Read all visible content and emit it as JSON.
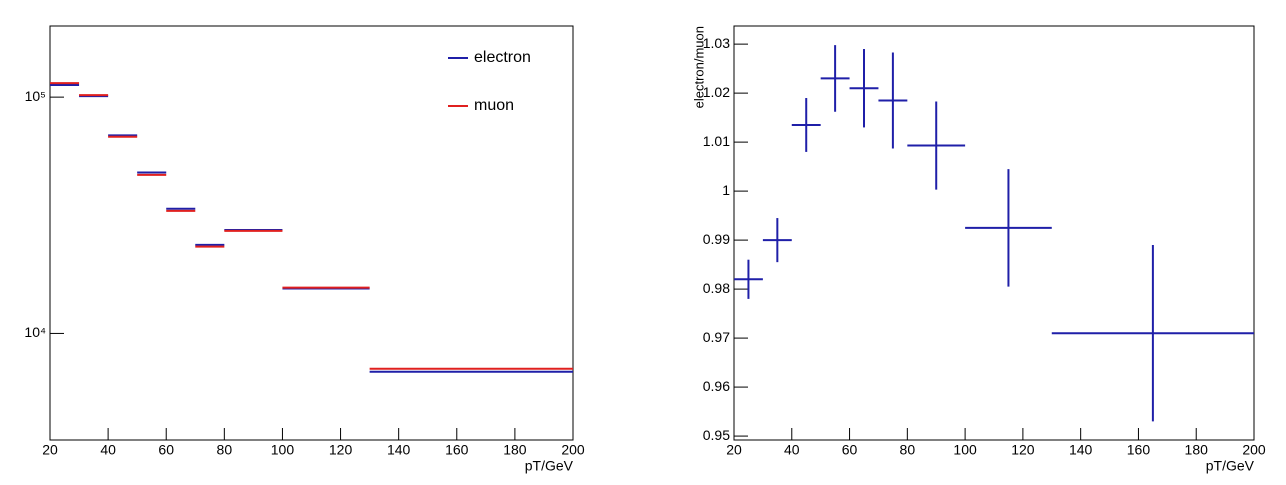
{
  "chart_data": [
    {
      "type": "histogram",
      "log_y": true,
      "legend": "upper right",
      "bins": [
        20,
        30,
        40,
        50,
        60,
        70,
        80,
        100,
        130,
        200
      ],
      "series": [
        {
          "name": "electron",
          "color": "#1f1fa8",
          "values": [
            112500,
            101000,
            68900,
            48000,
            33700,
            23700,
            27400,
            15500,
            6880
          ]
        },
        {
          "name": "muon",
          "color": "#e0201f",
          "values": [
            114600,
            102000,
            68000,
            46900,
            33000,
            23300,
            27150,
            15620,
            7090
          ]
        }
      ],
      "xlim": [
        20,
        200
      ],
      "xticks": [
        20,
        40,
        60,
        80,
        100,
        120,
        140,
        160,
        180,
        200
      ],
      "ylim": [
        3540,
        200000
      ],
      "yticks": [
        {
          "value": 10000,
          "label": "10⁴"
        },
        {
          "value": 100000,
          "label": "10⁵"
        }
      ],
      "x_label": "pT/GeV"
    },
    {
      "type": "errorbar",
      "color": "#1f1fa8",
      "x": [
        25,
        35,
        45,
        55,
        65,
        75,
        90,
        115,
        165
      ],
      "xerr": [
        5,
        5,
        5,
        5,
        5,
        5,
        10,
        15,
        35
      ],
      "values": [
        0.982,
        0.99,
        1.0135,
        1.023,
        1.021,
        1.0185,
        1.0093,
        0.9925,
        0.971
      ],
      "yerr": [
        0.004,
        0.0045,
        0.0055,
        0.0068,
        0.008,
        0.0098,
        0.009,
        0.012,
        0.018
      ],
      "xlim": [
        20,
        200
      ],
      "xticks": [
        20,
        40,
        60,
        80,
        100,
        120,
        140,
        160,
        180,
        200
      ],
      "ylim": [
        0.9492,
        1.0337
      ],
      "yticks": [
        0.95,
        0.96,
        0.97,
        0.98,
        0.99,
        1,
        1.01,
        1.02,
        1.03
      ],
      "x_label": "pT/GeV",
      "y_label": "electron/muon"
    }
  ]
}
